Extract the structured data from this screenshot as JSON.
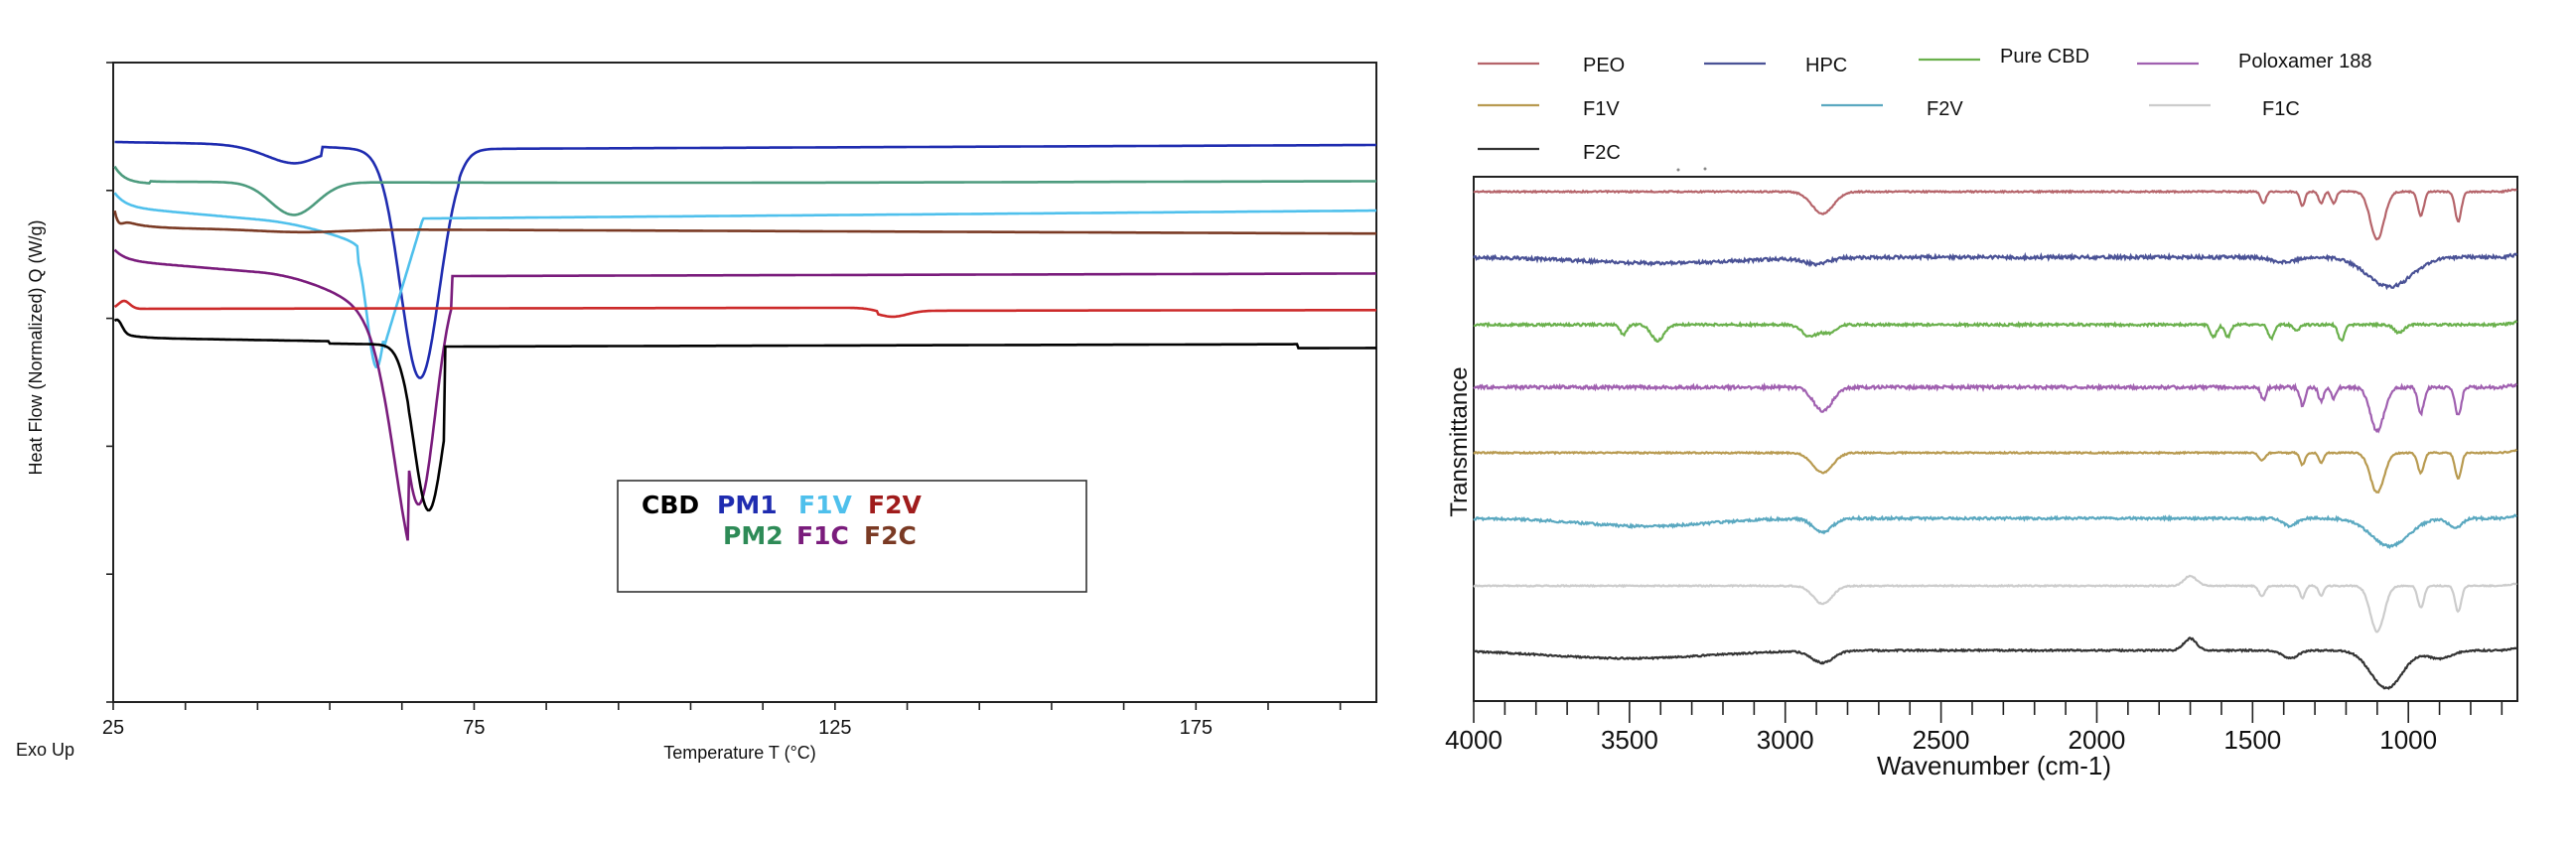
{
  "chart_data": [
    {
      "type": "line",
      "xlabel": "Temperature  T (°C)",
      "ylabel": "Heat Flow (Normalized)  Q  (W/g)",
      "corner_note": "Exo Up",
      "x_ticks": [
        25,
        75,
        125,
        175
      ],
      "xlim": [
        25,
        200
      ],
      "series": [
        {
          "name": "CBD",
          "color": "#000000"
        },
        {
          "name": "PM1",
          "color": "#1f2cb0"
        },
        {
          "name": "F1V",
          "color": "#4fc0ec"
        },
        {
          "name": "F2V",
          "color": "#a01c1c"
        },
        {
          "name": "PM2",
          "color": "#2e8b57"
        },
        {
          "name": "F1C",
          "color": "#7a1c7c"
        },
        {
          "name": "F2C",
          "color": "#7a3a24"
        }
      ],
      "box_legend_rows": [
        [
          {
            "text": "CBD",
            "color": "#000000"
          },
          {
            "text": "PM1",
            "color": "#1f2cb0"
          },
          {
            "text": "F1V",
            "color": "#4fc0ec"
          },
          {
            "text": "F2V",
            "color": "#a01c1c"
          }
        ],
        [
          {
            "text": "PM2",
            "color": "#2e8b57"
          },
          {
            "text": "F1C",
            "color": "#7a1c7c"
          },
          {
            "text": "F2C",
            "color": "#7a3a24"
          }
        ]
      ],
      "events": {
        "CBD_melt_peak": 68,
        "PEO_melt_peak": 67,
        "PM1_event": 52,
        "F1V_event": 62
      }
    },
    {
      "type": "line",
      "xlabel": "Wavenumber (cm-1)",
      "ylabel": "Transmittance",
      "x_ticks": [
        4000,
        3500,
        3000,
        2500,
        2000,
        1500,
        1000
      ],
      "xlim": [
        4000,
        650
      ],
      "x_reversed": true,
      "series": [
        {
          "name": "PEO",
          "color": "#b5646a"
        },
        {
          "name": "HPC",
          "color": "#4a5296"
        },
        {
          "name": "Pure CBD",
          "color": "#6ab04c"
        },
        {
          "name": "Poloxamer 188",
          "color": "#a060b0"
        },
        {
          "name": "F1V",
          "color": "#b89a50"
        },
        {
          "name": "F2V",
          "color": "#5aa8c0"
        },
        {
          "name": "F1C",
          "color": "#cccccc"
        },
        {
          "name": "F2C",
          "color": "#333333"
        }
      ],
      "bands_cm1": [
        2880,
        1465,
        1340,
        1280,
        1240,
        1100,
        960,
        840
      ]
    }
  ]
}
